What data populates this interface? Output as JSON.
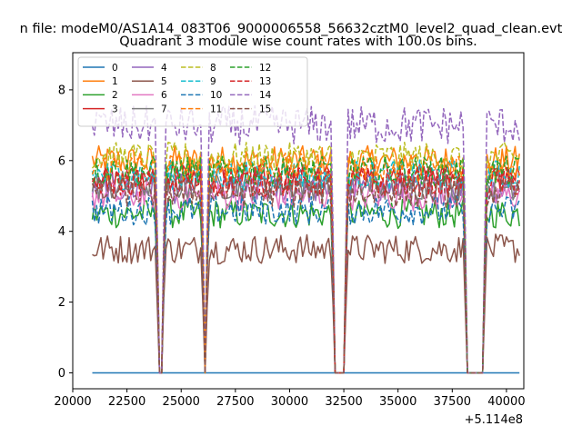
{
  "chart_data": {
    "type": "line",
    "suptitle": "n file: modeM0/AS1A14_083T06_9000006558_56632cztM0_level2_quad_clean.evt",
    "title": "Quadrant 3 module wise count rates with 100.0s bins.",
    "xlabel": "",
    "ylabel": "",
    "x_offset_label": "+5.114e8",
    "xlim": [
      20000,
      40800
    ],
    "ylim": [
      -0.45,
      9.05
    ],
    "x_ticks": [
      20000,
      22500,
      25000,
      27500,
      30000,
      32500,
      35000,
      37500,
      40000
    ],
    "y_ticks": [
      0,
      2,
      4,
      6,
      8
    ],
    "x_tick_labels": [
      "20000",
      "22500",
      "25000",
      "27500",
      "30000",
      "32500",
      "35000",
      "37500",
      "40000"
    ],
    "y_tick_labels": [
      "0",
      "2",
      "4",
      "6",
      "8"
    ],
    "x_start": 20900,
    "x_end": 40600,
    "bin_size": 100,
    "gaps": [
      [
        24000,
        24150
      ],
      [
        26050,
        26150
      ],
      [
        32050,
        32550
      ],
      [
        38150,
        38900
      ]
    ],
    "legend": {
      "position": "top-left",
      "columns": 4
    },
    "series": [
      {
        "name": "0",
        "color": "#1f77b4",
        "dash": "solid",
        "level": 0.0
      },
      {
        "name": "1",
        "color": "#ff7f0e",
        "dash": "solid",
        "level": 6.0
      },
      {
        "name": "2",
        "color": "#2ca02c",
        "dash": "solid",
        "level": 4.5
      },
      {
        "name": "3",
        "color": "#d62728",
        "dash": "solid",
        "level": 5.5
      },
      {
        "name": "4",
        "color": "#9467bd",
        "dash": "solid",
        "level": 5.2
      },
      {
        "name": "5",
        "color": "#8c564b",
        "dash": "solid",
        "level": 3.5
      },
      {
        "name": "6",
        "color": "#e377c2",
        "dash": "solid",
        "level": 5.0
      },
      {
        "name": "7",
        "color": "#7f7f7f",
        "dash": "solid",
        "level": 5.3
      },
      {
        "name": "8",
        "color": "#bcbd22",
        "dash": "dashed",
        "level": 6.1
      },
      {
        "name": "9",
        "color": "#17becf",
        "dash": "dashed",
        "level": 5.6
      },
      {
        "name": "10",
        "color": "#1f77b4",
        "dash": "dashed",
        "level": 4.6
      },
      {
        "name": "11",
        "color": "#ff7f0e",
        "dash": "dashed",
        "level": 5.8
      },
      {
        "name": "12",
        "color": "#2ca02c",
        "dash": "dashed",
        "level": 5.7
      },
      {
        "name": "13",
        "color": "#d62728",
        "dash": "dashed",
        "level": 5.4
      },
      {
        "name": "14",
        "color": "#9467bd",
        "dash": "dashed",
        "level": 7.0
      },
      {
        "name": "15",
        "color": "#8c564b",
        "dash": "dashed",
        "level": 5.1
      }
    ]
  }
}
